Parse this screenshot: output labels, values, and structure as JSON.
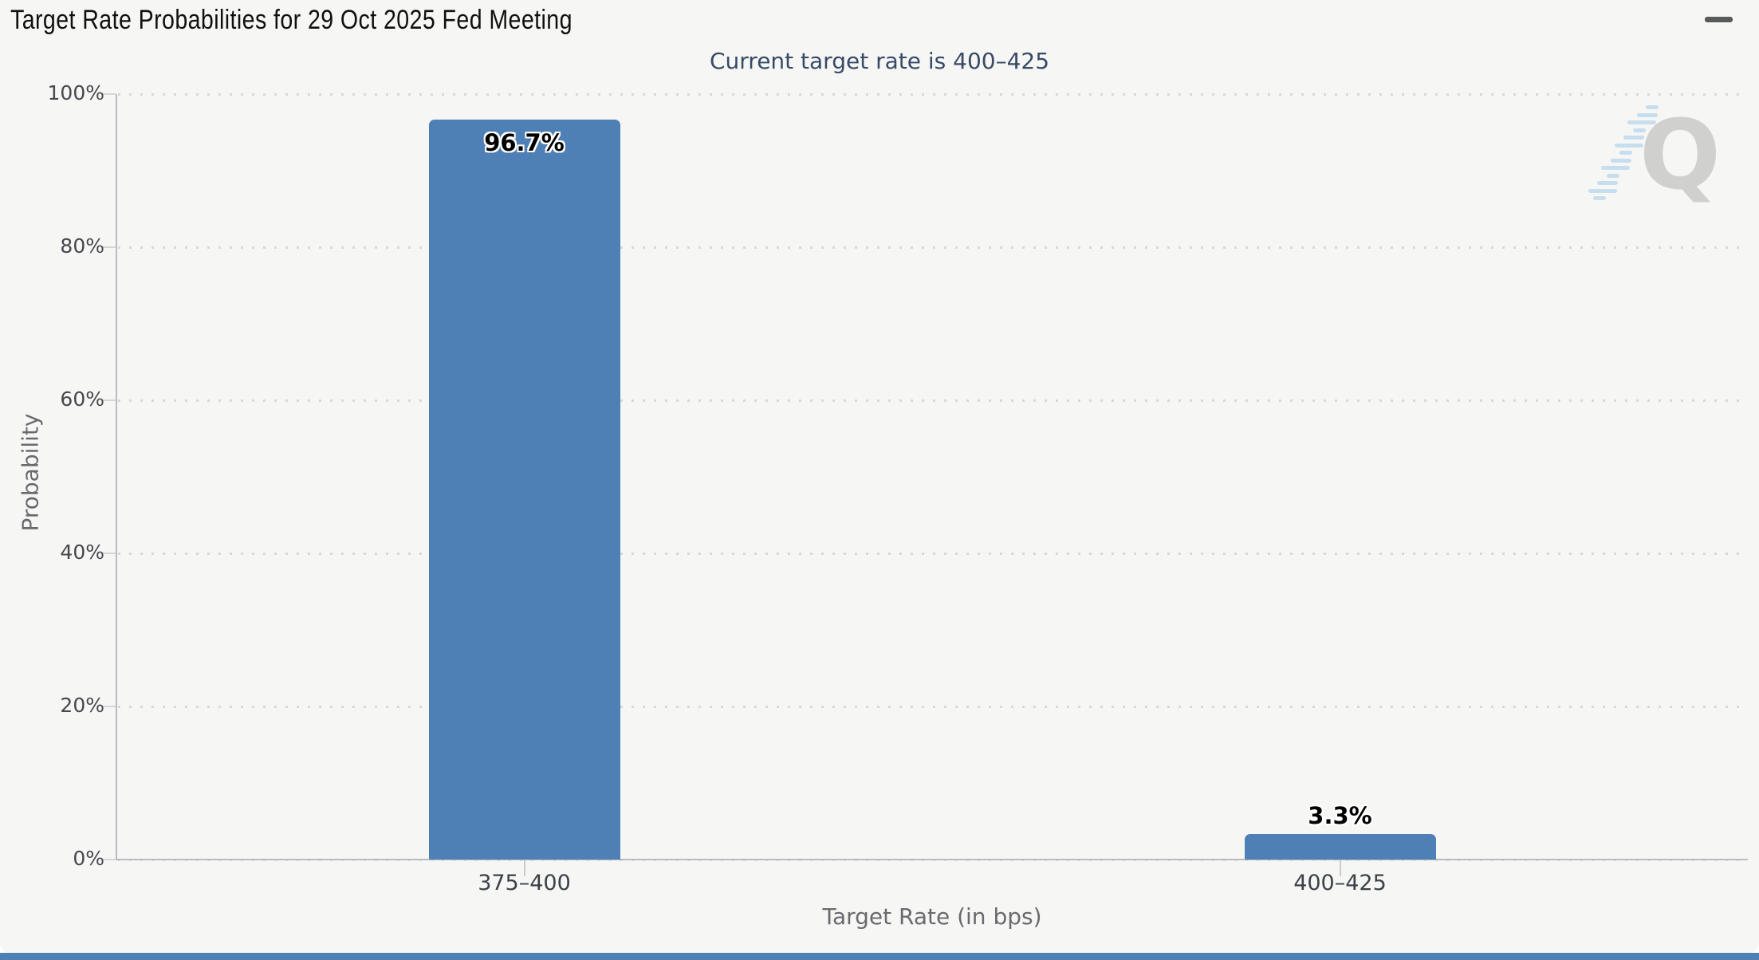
{
  "page": {
    "title": "Target Rate Probabilities for 29 Oct 2025 Fed Meeting",
    "subtitle": "Current target rate is 400–425",
    "watermark_letter": "Q"
  },
  "colors": {
    "bar": "#4e80b6",
    "panel_background": "#f6f6f5",
    "page_background": "#ffffff",
    "subtitle_text": "#374a66",
    "axis_text": "#46484d",
    "axis_title_text": "#696a6e",
    "bottom_strip": "#4e80b6"
  },
  "chart_data": {
    "type": "bar",
    "title": "Target Rate Probabilities for 29 Oct 2025 Fed Meeting",
    "subtitle": "Current target rate is 400–425",
    "categories": [
      "375–400",
      "400–425"
    ],
    "values": [
      96.7,
      3.3
    ],
    "bar_labels": [
      "96.7%",
      "3.3%"
    ],
    "xlabel": "Target Rate (in bps)",
    "ylabel": "Probability",
    "ylim": [
      0,
      100
    ],
    "yticks": [
      "0%",
      "20%",
      "40%",
      "60%",
      "80%",
      "100%"
    ],
    "grid": "dotted horizontal gridlines at 20% intervals",
    "legend": "none",
    "bar_label_style": "black text with white outline; large bar label inside top, small bar label above bar"
  }
}
